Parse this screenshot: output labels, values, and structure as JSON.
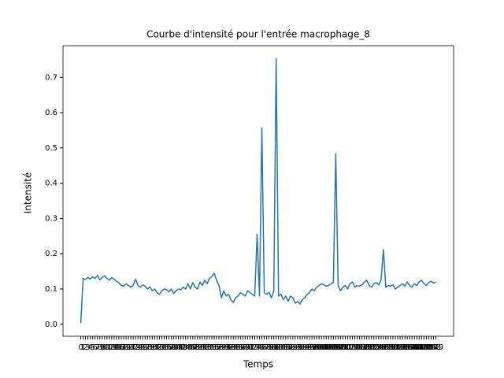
{
  "chart_data": {
    "type": "line",
    "title": "Courbe d'intensité pour l'entrée macrophage_8",
    "x_label": "Temps",
    "y_label": "Intensité",
    "color": "#1f77b4",
    "categories": [
      "0",
      "1",
      "2",
      "3",
      "4",
      "5",
      "6",
      "7",
      "8",
      "9",
      "10",
      "11",
      "12",
      "13",
      "14",
      "15",
      "16",
      "17",
      "18",
      "19",
      "20",
      "21",
      "22",
      "23",
      "24",
      "25",
      "26",
      "27",
      "28",
      "29",
      "30",
      "31",
      "32",
      "33",
      "34",
      "35",
      "36",
      "37",
      "38",
      "39",
      "40",
      "41",
      "42",
      "43",
      "44",
      "45",
      "46",
      "47",
      "48",
      "49",
      "50",
      "51",
      "52",
      "53",
      "54",
      "55",
      "56",
      "57",
      "58",
      "59",
      "60",
      "61",
      "62",
      "63",
      "64",
      "65",
      "66",
      "67",
      "68",
      "69",
      "70",
      "71",
      "72",
      "73",
      "74",
      "75",
      "76",
      "77",
      "78",
      "79",
      "80",
      "81",
      "82",
      "83",
      "84",
      "85",
      "86",
      "87",
      "88",
      "89",
      "90",
      "91",
      "92",
      "93",
      "94",
      "95",
      "96",
      "97",
      "98",
      "99",
      "100",
      "101",
      "102",
      "103",
      "104",
      "105",
      "106",
      "107",
      "108",
      "109",
      "110",
      "111",
      "112",
      "113",
      "114",
      "115",
      "116",
      "117",
      "118",
      "119",
      "120",
      "121",
      "122",
      "123",
      "124",
      "125",
      "126",
      "127",
      "128",
      "129",
      "130",
      "131",
      "132",
      "133",
      "134",
      "135",
      "136",
      "137",
      "138",
      "139",
      "140",
      "141",
      "142",
      "143",
      "144",
      "145",
      "146",
      "147",
      "148",
      "149"
    ],
    "values": [
      0.003,
      0.13,
      0.127,
      0.133,
      0.128,
      0.135,
      0.13,
      0.138,
      0.126,
      0.133,
      0.137,
      0.13,
      0.125,
      0.132,
      0.128,
      0.122,
      0.118,
      0.11,
      0.108,
      0.115,
      0.11,
      0.105,
      0.11,
      0.128,
      0.11,
      0.105,
      0.112,
      0.108,
      0.1,
      0.106,
      0.095,
      0.1,
      0.09,
      0.085,
      0.095,
      0.1,
      0.098,
      0.092,
      0.1,
      0.087,
      0.095,
      0.1,
      0.098,
      0.105,
      0.1,
      0.115,
      0.1,
      0.118,
      0.105,
      0.1,
      0.12,
      0.11,
      0.125,
      0.115,
      0.13,
      0.135,
      0.145,
      0.125,
      0.11,
      0.075,
      0.095,
      0.08,
      0.085,
      0.07,
      0.062,
      0.075,
      0.08,
      0.09,
      0.085,
      0.08,
      0.095,
      0.09,
      0.085,
      0.08,
      0.255,
      0.08,
      0.557,
      0.09,
      0.085,
      0.09,
      0.075,
      0.095,
      0.753,
      0.08,
      0.085,
      0.07,
      0.08,
      0.065,
      0.08,
      0.075,
      0.06,
      0.065,
      0.058,
      0.07,
      0.075,
      0.085,
      0.09,
      0.1,
      0.095,
      0.105,
      0.11,
      0.115,
      0.112,
      0.108,
      0.11,
      0.115,
      0.118,
      0.484,
      0.11,
      0.095,
      0.105,
      0.11,
      0.1,
      0.115,
      0.12,
      0.105,
      0.11,
      0.108,
      0.112,
      0.12,
      0.125,
      0.11,
      0.105,
      0.115,
      0.118,
      0.112,
      0.125,
      0.212,
      0.105,
      0.11,
      0.108,
      0.112,
      0.1,
      0.105,
      0.11,
      0.115,
      0.108,
      0.12,
      0.11,
      0.105,
      0.115,
      0.11,
      0.12,
      0.125,
      0.115,
      0.11,
      0.118,
      0.122,
      0.117,
      0.12
    ],
    "ylim": [
      -0.034,
      0.79
    ],
    "yticks": [
      {
        "value": 0,
        "label": "0.0"
      },
      0.1,
      0.2,
      0.3,
      0.4,
      0.5,
      0.6,
      0.7
    ]
  }
}
